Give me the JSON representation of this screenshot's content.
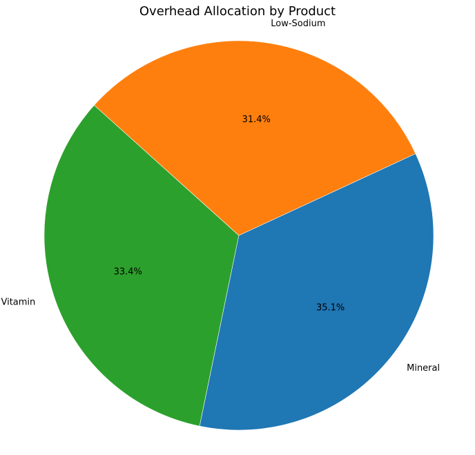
{
  "chart_data": {
    "type": "pie",
    "title": "Overhead Allocation by Product",
    "slices": [
      {
        "label": "Vitamin",
        "value": 33.4,
        "pct_label": "33.4%",
        "color": "#2ca02c"
      },
      {
        "label": "Mineral",
        "value": 35.1,
        "pct_label": "35.1%",
        "color": "#1f77b4"
      },
      {
        "label": "Low-Sodium",
        "value": 31.4,
        "pct_label": "31.4%",
        "color": "#ff7f0e"
      }
    ],
    "start_angle_deg": 138,
    "direction": "counterclockwise",
    "legend": "none"
  }
}
